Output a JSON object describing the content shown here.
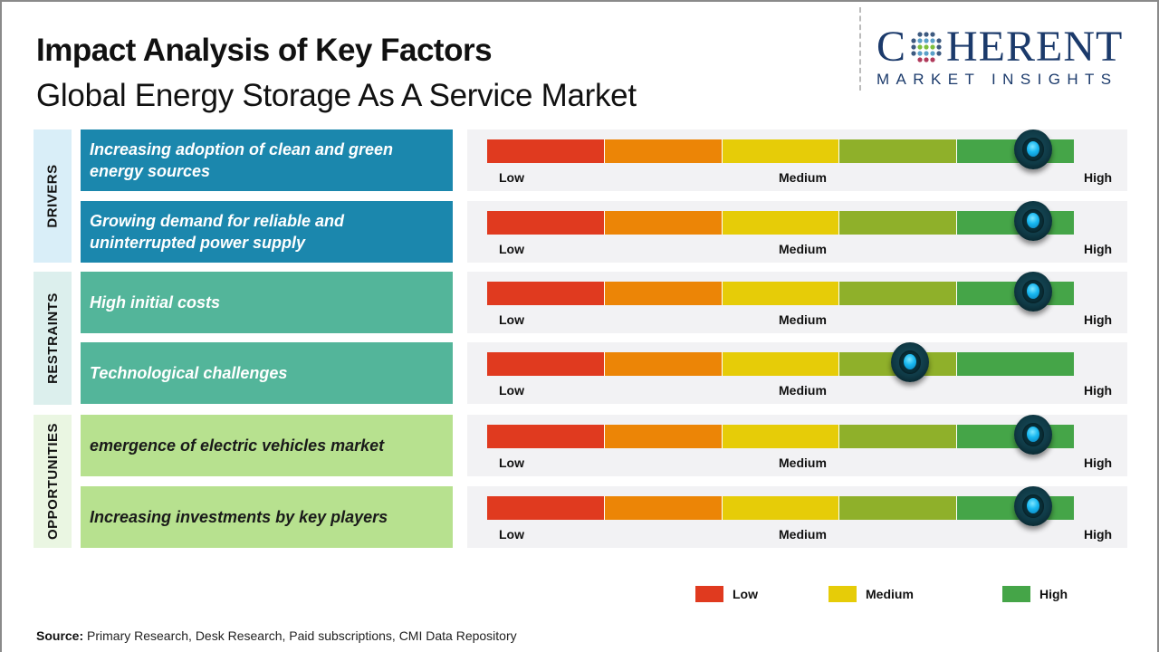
{
  "header": {
    "title": "Impact Analysis of Key Factors",
    "subtitle": "Global Energy Storage As A Service Market"
  },
  "logo": {
    "top_left": "C",
    "top_right": "HERENT",
    "bottom": "MARKET INSIGHTS",
    "icon": "globe-dots-icon"
  },
  "colors": {
    "segments": [
      "#e03a1f",
      "#ec8506",
      "#e6cc08",
      "#8fb02a",
      "#45a548"
    ],
    "drivers_fill": "#1b87ad",
    "drivers_label_bg": "#d9eef8",
    "restraints_fill": "#53b59a",
    "restraints_label_bg": "#dcefed",
    "opportunities_fill": "#b7e18f",
    "opportunities_label_bg": "#eaf6e2",
    "knob": "#17b7f0"
  },
  "groups": [
    {
      "label": "DRIVERS",
      "rows": [
        0,
        1
      ]
    },
    {
      "label": "RESTRAINTS",
      "rows": [
        2,
        3
      ]
    },
    {
      "label": "OPPORTUNITIES",
      "rows": [
        4,
        5
      ]
    }
  ],
  "scale_labels": {
    "low": "Low",
    "medium": "Medium",
    "high": "High"
  },
  "legend": [
    {
      "label": "Low",
      "color": "#e03a1f"
    },
    {
      "label": "Medium",
      "color": "#e6cc08"
    },
    {
      "label": "High",
      "color": "#45a548"
    }
  ],
  "source": {
    "label": "Source:",
    "text": " Primary Research, Desk Research, Paid subscriptions, CMI Data Repository"
  },
  "chart_data": {
    "type": "bar",
    "title": "Impact Analysis of Key Factors",
    "subtitle": "Global Energy Storage As A Service Market",
    "scale": {
      "min": 0,
      "max": 1,
      "tick_labels": [
        "Low",
        "Medium",
        "High"
      ],
      "segments": 5
    },
    "categories": [
      "Increasing adoption of clean and green energy sources",
      "Growing demand for reliable and uninterrupted power supply",
      "High initial costs",
      "Technological challenges",
      "emergence of electric vehicles market",
      "Increasing investments by key players"
    ],
    "groups": [
      "Drivers",
      "Drivers",
      "Restraints",
      "Restraints",
      "Opportunities",
      "Opportunities"
    ],
    "values": [
      0.93,
      0.93,
      0.93,
      0.72,
      0.93,
      0.93
    ],
    "impact": [
      "High",
      "High",
      "High",
      "Medium-High",
      "High",
      "High"
    ],
    "legend": [
      "Low",
      "Medium",
      "High"
    ],
    "legend_position": "bottom-right"
  }
}
